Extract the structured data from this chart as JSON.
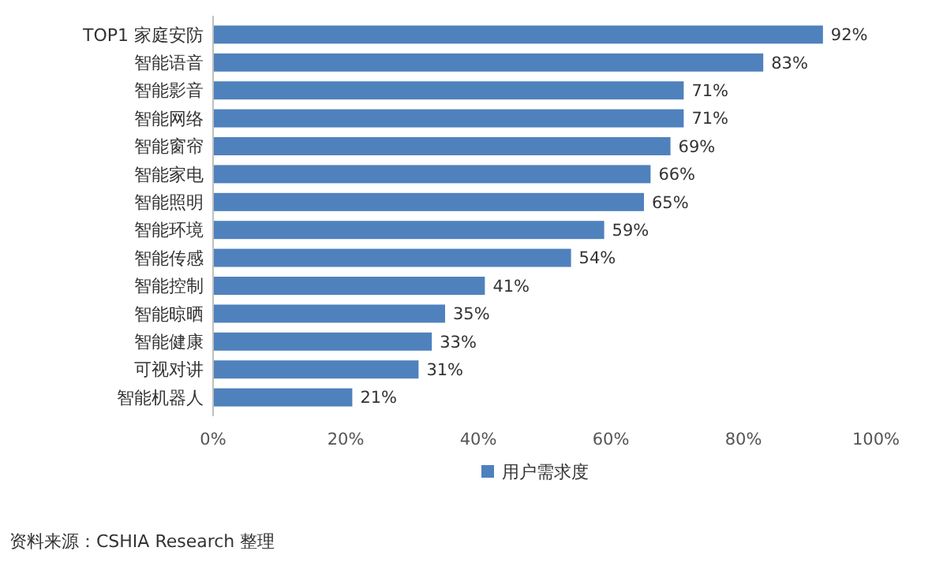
{
  "chart_data": {
    "type": "bar",
    "orientation": "horizontal",
    "categories": [
      "TOP1 家庭安防",
      "智能语音",
      "智能影音",
      "智能网络",
      "智能窗帘",
      "智能家电",
      "智能照明",
      "智能环境",
      "智能传感",
      "智能控制",
      "智能晾晒",
      "智能健康",
      "可视对讲",
      "智能机器人"
    ],
    "series": [
      {
        "name": "用户需求度",
        "color": "#4f81bd",
        "values": [
          92,
          83,
          71,
          71,
          69,
          66,
          65,
          59,
          54,
          41,
          35,
          33,
          31,
          21
        ]
      }
    ],
    "xlim": [
      0,
      100
    ],
    "xticks": [
      {
        "value": 0,
        "label": "0%"
      },
      {
        "value": 20,
        "label": "20%"
      },
      {
        "value": 40,
        "label": "40%"
      },
      {
        "value": 60,
        "label": "60%"
      },
      {
        "value": 80,
        "label": "80%"
      },
      {
        "value": 100,
        "label": "100%"
      }
    ],
    "value_labels": [
      "92%",
      "83%",
      "71%",
      "71%",
      "69%",
      "66%",
      "65%",
      "59%",
      "54%",
      "41%",
      "35%",
      "33%",
      "31%",
      "21%"
    ],
    "legend": "bottom",
    "grid": false,
    "annotations": [
      "资料来源：CSHIA Research 整理"
    ]
  }
}
